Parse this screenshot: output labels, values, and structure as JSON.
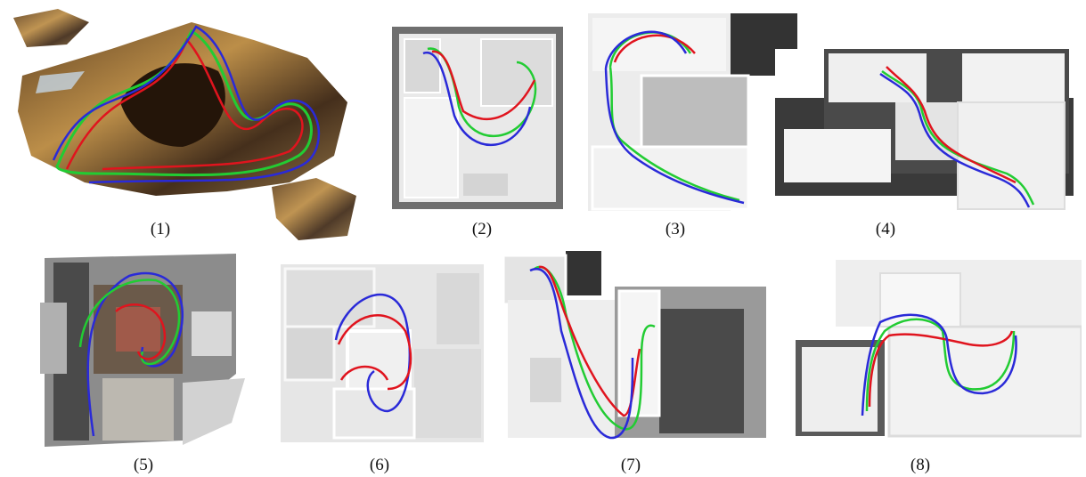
{
  "captions": [
    "(1)",
    "(2)",
    "(3)",
    "(4)",
    "(5)",
    "(6)",
    "(7)",
    "(8)"
  ],
  "trajectory_colors": {
    "red": "#e0141e",
    "green": "#22cc33",
    "blue": "#2a2ad8"
  }
}
